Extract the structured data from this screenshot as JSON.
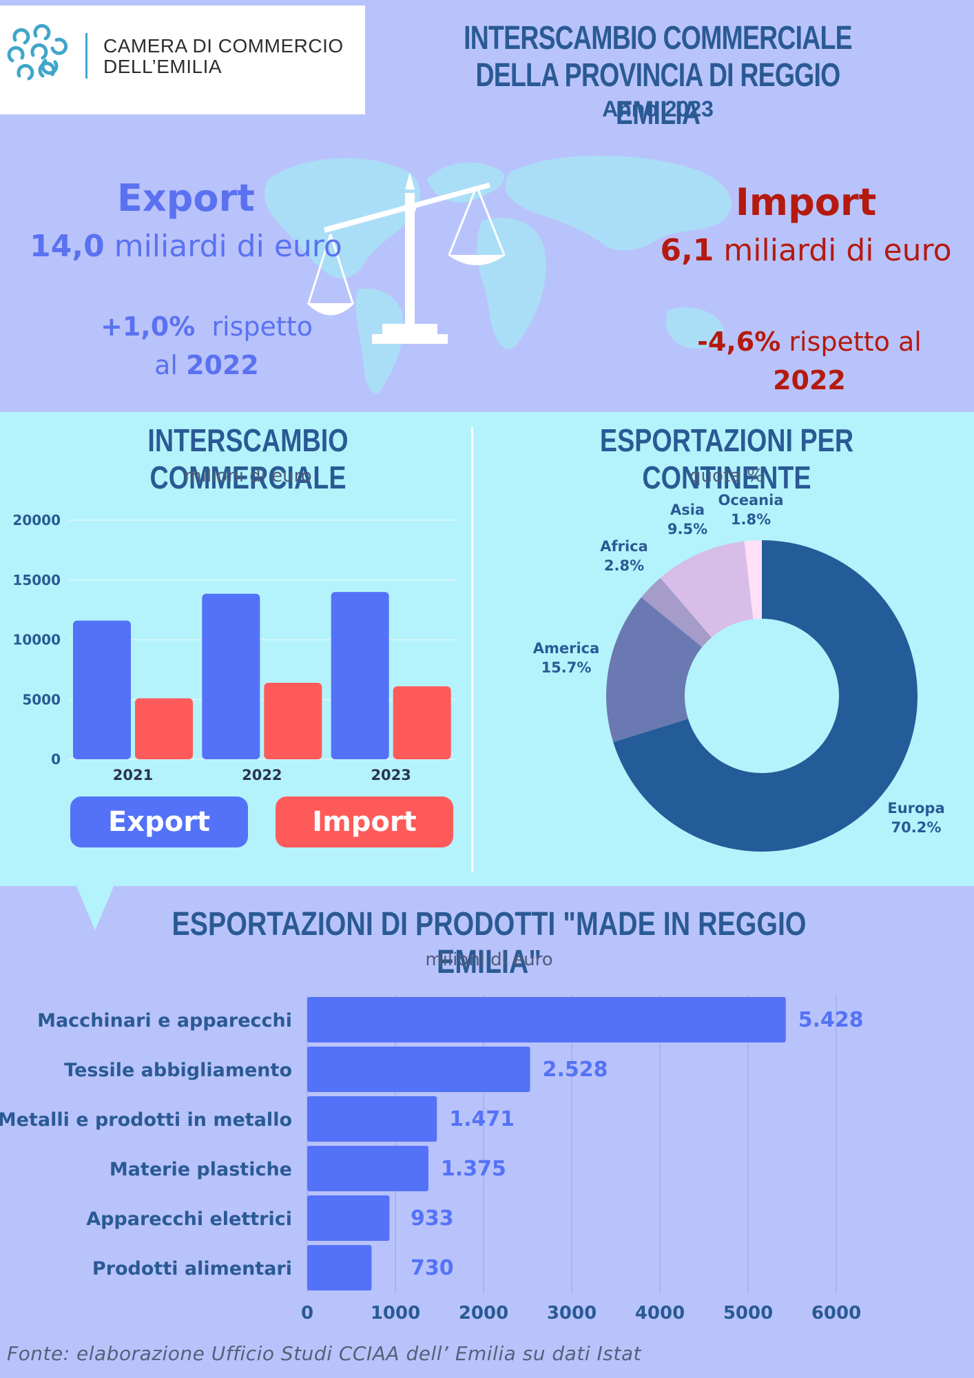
{
  "header": {
    "logo_line1": "CAMERA DI COMMERCIO",
    "logo_line2": "DELL’EMILIA",
    "title_line1": "INTERSCAMBIO COMMERCIALE",
    "title_line2": "DELLA PROVINCIA DI REGGIO EMILIA",
    "year": "Anno 2023"
  },
  "hero": {
    "export_label": "Export",
    "export_value": "14,0",
    "export_unit": "miliardi di euro",
    "export_delta": "+1,0%",
    "export_delta_text1": "rispetto",
    "export_delta_text2": "al",
    "export_delta_year": "2022",
    "import_label": "Import",
    "import_value": "6,1",
    "import_unit": "miliardi di euro",
    "import_delta": "-4,6%",
    "import_delta_text": "rispetto al",
    "import_delta_year": "2022"
  },
  "bar_panel": {
    "title": "INTERSCAMBIO COMMERCIALE",
    "subtitle": "milioni di euro",
    "legend_export": "Export",
    "legend_import": "Import"
  },
  "pie_panel": {
    "title": "ESPORTAZIONI PER CONTINENTE",
    "subtitle": "quota %"
  },
  "hbar_panel": {
    "title": "ESPORTAZIONI DI PRODOTTI \"MADE IN REGGIO EMILIA\"",
    "subtitle": "milioni di euro"
  },
  "source": "Fonte: elaborazione Ufficio Studi CCIAA dell’ Emilia su dati Istat",
  "colors": {
    "export": "#5472f7",
    "import": "#ff5a5a",
    "title": "#2a5a94",
    "pie": [
      "#235c98",
      "#6b79b3",
      "#a59cca",
      "#d7bde8",
      "#ffe0f7"
    ]
  },
  "chart_data": [
    {
      "type": "bar",
      "categories": [
        "2021",
        "2022",
        "2023"
      ],
      "series": [
        {
          "name": "Export",
          "values": [
            11600,
            13850,
            14000
          ]
        },
        {
          "name": "Import",
          "values": [
            5100,
            6400,
            6100
          ]
        }
      ],
      "ylim": [
        0,
        20000
      ],
      "yticks": [
        0,
        5000,
        10000,
        15000,
        20000
      ],
      "grid": true,
      "legend": "bottom"
    },
    {
      "type": "pie",
      "donut": true,
      "labels": [
        "Europa",
        "America",
        "Africa",
        "Asia",
        "Oceania"
      ],
      "values": [
        70.2,
        15.7,
        2.8,
        9.5,
        1.8
      ],
      "value_labels": [
        "70.2%",
        "15.7%",
        "2.8%",
        "9.5%",
        "1.8%"
      ]
    },
    {
      "type": "bar",
      "orientation": "horizontal",
      "categories": [
        "Macchinari e apparecchi",
        "Tessile abbigliamento",
        "Metalli e prodotti in metallo",
        "Materie plastiche",
        "Apparecchi elettrici",
        "Prodotti alimentari"
      ],
      "values": [
        5428,
        2528,
        1471,
        1375,
        933,
        730
      ],
      "value_labels": [
        "5.428",
        "2.528",
        "1.471",
        "1.375",
        "933",
        "730"
      ],
      "xlim": [
        0,
        6000
      ],
      "xticks": [
        0,
        1000,
        2000,
        3000,
        4000,
        5000,
        6000
      ],
      "grid": true
    }
  ]
}
